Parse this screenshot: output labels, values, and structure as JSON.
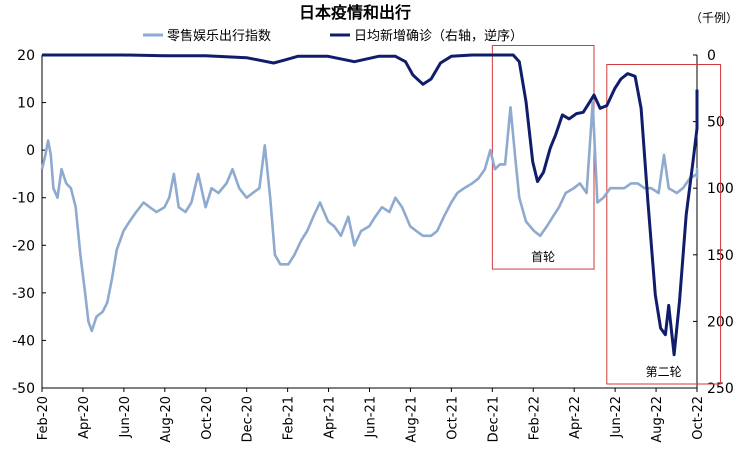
{
  "chart_data": {
    "type": "line",
    "title": "日本疫情和出行",
    "unit_label": "（千例）",
    "x_tick_labels": [
      "Feb-20",
      "Apr-20",
      "Jun-20",
      "Aug-20",
      "Oct-20",
      "Dec-20",
      "Feb-21",
      "Apr-21",
      "Jun-21",
      "Aug-21",
      "Oct-21",
      "Dec-21",
      "Feb-22",
      "Apr-22",
      "Jun-22",
      "Aug-22",
      "Oct-22"
    ],
    "x_range": [
      "2020-02",
      "2022-10"
    ],
    "y_left": {
      "ylim": [
        -50,
        20
      ],
      "ticks": [
        "20",
        "10",
        "0",
        "-10",
        "-20",
        "-30",
        "-40",
        "-50"
      ],
      "tick_color": "#000000"
    },
    "y_right": {
      "ylim": [
        0,
        250
      ],
      "reversed": true,
      "ticks": [
        "0",
        "50",
        "100",
        "150",
        "200",
        "250"
      ]
    },
    "series": [
      {
        "name": "零售娱乐出行指数",
        "axis": "left",
        "color": "#8eaacf",
        "points": [
          [
            "2020-02-01",
            -4
          ],
          [
            "2020-02-06",
            -1
          ],
          [
            "2020-02-10",
            2
          ],
          [
            "2020-02-14",
            -1
          ],
          [
            "2020-02-18",
            -8
          ],
          [
            "2020-02-24",
            -10
          ],
          [
            "2020-03-01",
            -4
          ],
          [
            "2020-03-08",
            -7
          ],
          [
            "2020-03-15",
            -8
          ],
          [
            "2020-03-22",
            -12
          ],
          [
            "2020-03-29",
            -22
          ],
          [
            "2020-04-05",
            -30
          ],
          [
            "2020-04-10",
            -36
          ],
          [
            "2020-04-15",
            -38
          ],
          [
            "2020-04-22",
            -35
          ],
          [
            "2020-05-01",
            -34
          ],
          [
            "2020-05-08",
            -32
          ],
          [
            "2020-05-15",
            -27
          ],
          [
            "2020-05-22",
            -21
          ],
          [
            "2020-06-01",
            -17
          ],
          [
            "2020-06-10",
            -15
          ],
          [
            "2020-06-20",
            -13
          ],
          [
            "2020-07-01",
            -11
          ],
          [
            "2020-07-10",
            -12
          ],
          [
            "2020-07-20",
            -13
          ],
          [
            "2020-08-01",
            -12
          ],
          [
            "2020-08-08",
            -10
          ],
          [
            "2020-08-15",
            -5
          ],
          [
            "2020-08-22",
            -12
          ],
          [
            "2020-09-01",
            -13
          ],
          [
            "2020-09-10",
            -11
          ],
          [
            "2020-09-20",
            -5
          ],
          [
            "2020-10-01",
            -12
          ],
          [
            "2020-10-10",
            -8
          ],
          [
            "2020-10-20",
            -9
          ],
          [
            "2020-11-01",
            -7
          ],
          [
            "2020-11-10",
            -4
          ],
          [
            "2020-11-20",
            -8
          ],
          [
            "2020-12-01",
            -10
          ],
          [
            "2020-12-10",
            -9
          ],
          [
            "2020-12-20",
            -8
          ],
          [
            "2020-12-28",
            1
          ],
          [
            "2021-01-05",
            -10
          ],
          [
            "2021-01-12",
            -22
          ],
          [
            "2021-01-20",
            -24
          ],
          [
            "2021-02-01",
            -24
          ],
          [
            "2021-02-10",
            -22
          ],
          [
            "2021-02-20",
            -19
          ],
          [
            "2021-03-01",
            -17
          ],
          [
            "2021-03-10",
            -14
          ],
          [
            "2021-03-20",
            -11
          ],
          [
            "2021-04-01",
            -15
          ],
          [
            "2021-04-10",
            -16
          ],
          [
            "2021-04-20",
            -18
          ],
          [
            "2021-05-01",
            -14
          ],
          [
            "2021-05-10",
            -20
          ],
          [
            "2021-05-20",
            -17
          ],
          [
            "2021-06-01",
            -16
          ],
          [
            "2021-06-10",
            -14
          ],
          [
            "2021-06-20",
            -12
          ],
          [
            "2021-07-01",
            -13
          ],
          [
            "2021-07-10",
            -10
          ],
          [
            "2021-07-20",
            -12
          ],
          [
            "2021-08-01",
            -16
          ],
          [
            "2021-08-10",
            -17
          ],
          [
            "2021-08-20",
            -18
          ],
          [
            "2021-09-01",
            -18
          ],
          [
            "2021-09-10",
            -17
          ],
          [
            "2021-09-20",
            -14
          ],
          [
            "2021-10-01",
            -11
          ],
          [
            "2021-10-10",
            -9
          ],
          [
            "2021-10-20",
            -8
          ],
          [
            "2021-11-01",
            -7
          ],
          [
            "2021-11-10",
            -6
          ],
          [
            "2021-11-20",
            -4
          ],
          [
            "2021-11-28",
            0
          ],
          [
            "2021-12-05",
            -4
          ],
          [
            "2021-12-12",
            -3
          ],
          [
            "2021-12-20",
            -3
          ],
          [
            "2021-12-28",
            9
          ],
          [
            "2022-01-05",
            -3
          ],
          [
            "2022-01-10",
            -10
          ],
          [
            "2022-01-20",
            -15
          ],
          [
            "2022-02-01",
            -17
          ],
          [
            "2022-02-10",
            -18
          ],
          [
            "2022-02-20",
            -16
          ],
          [
            "2022-03-01",
            -14
          ],
          [
            "2022-03-10",
            -12
          ],
          [
            "2022-03-20",
            -9
          ],
          [
            "2022-04-01",
            -8
          ],
          [
            "2022-04-10",
            -7
          ],
          [
            "2022-04-20",
            -9
          ],
          [
            "2022-04-29",
            10
          ],
          [
            "2022-05-06",
            -11
          ],
          [
            "2022-05-15",
            -10
          ],
          [
            "2022-05-25",
            -8
          ],
          [
            "2022-06-05",
            -8
          ],
          [
            "2022-06-15",
            -8
          ],
          [
            "2022-06-25",
            -7
          ],
          [
            "2022-07-05",
            -7
          ],
          [
            "2022-07-15",
            -8
          ],
          [
            "2022-07-25",
            -8
          ],
          [
            "2022-08-05",
            -9
          ],
          [
            "2022-08-13",
            -1
          ],
          [
            "2022-08-20",
            -8
          ],
          [
            "2022-09-01",
            -9
          ],
          [
            "2022-09-10",
            -8
          ],
          [
            "2022-09-20",
            -6
          ],
          [
            "2022-10-01",
            -5
          ],
          [
            "2022-10-10",
            -4
          ],
          [
            "2022-10-20",
            -6
          ]
        ]
      },
      {
        "name": "日均新增确诊（右轴，逆序）",
        "axis": "right",
        "color": "#101d6b",
        "points": [
          [
            "2020-02-01",
            0
          ],
          [
            "2020-04-01",
            0
          ],
          [
            "2020-06-01",
            0
          ],
          [
            "2020-08-01",
            0.5
          ],
          [
            "2020-10-01",
            0.5
          ],
          [
            "2020-12-01",
            2
          ],
          [
            "2021-01-10",
            6
          ],
          [
            "2021-01-25",
            4
          ],
          [
            "2021-02-15",
            1
          ],
          [
            "2021-04-01",
            1
          ],
          [
            "2021-05-10",
            5
          ],
          [
            "2021-06-15",
            1
          ],
          [
            "2021-07-10",
            1
          ],
          [
            "2021-07-25",
            5
          ],
          [
            "2021-08-05",
            15
          ],
          [
            "2021-08-20",
            22
          ],
          [
            "2021-09-01",
            18
          ],
          [
            "2021-09-15",
            6
          ],
          [
            "2021-10-01",
            1
          ],
          [
            "2021-11-01",
            0
          ],
          [
            "2021-12-01",
            0
          ],
          [
            "2022-01-01",
            0
          ],
          [
            "2022-01-10",
            5
          ],
          [
            "2022-01-20",
            35
          ],
          [
            "2022-01-30",
            80
          ],
          [
            "2022-02-06",
            95
          ],
          [
            "2022-02-15",
            88
          ],
          [
            "2022-02-25",
            70
          ],
          [
            "2022-03-05",
            60
          ],
          [
            "2022-03-15",
            45
          ],
          [
            "2022-03-25",
            48
          ],
          [
            "2022-04-05",
            44
          ],
          [
            "2022-04-15",
            43
          ],
          [
            "2022-04-25",
            35
          ],
          [
            "2022-05-01",
            30
          ],
          [
            "2022-05-10",
            40
          ],
          [
            "2022-05-20",
            38
          ],
          [
            "2022-06-01",
            25
          ],
          [
            "2022-06-10",
            18
          ],
          [
            "2022-06-20",
            14
          ],
          [
            "2022-07-01",
            16
          ],
          [
            "2022-07-10",
            40
          ],
          [
            "2022-07-20",
            110
          ],
          [
            "2022-07-31",
            180
          ],
          [
            "2022-08-08",
            205
          ],
          [
            "2022-08-15",
            210
          ],
          [
            "2022-08-20",
            188
          ],
          [
            "2022-08-28",
            225
          ],
          [
            "2022-09-05",
            185
          ],
          [
            "2022-09-15",
            120
          ],
          [
            "2022-09-25",
            80
          ],
          [
            "2022-10-05",
            55
          ],
          [
            "2022-10-15",
            45
          ],
          [
            "2022-10-22",
            30
          ],
          [
            "2022-10-30",
            26
          ]
        ]
      }
    ],
    "annotations": [
      {
        "label": "首轮",
        "x_range": [
          "2021-12-01",
          "2022-05-01"
        ],
        "y_range": [
          22,
          -25
        ],
        "edge_color": "#d23a3a"
      },
      {
        "label": "第二轮",
        "x_range": [
          "2022-05-20",
          "2022-11-05"
        ],
        "y_range": [
          18,
          -50
        ],
        "edge_color": "#d23a3a"
      }
    ],
    "grid": false,
    "legend_position": "top-center"
  }
}
